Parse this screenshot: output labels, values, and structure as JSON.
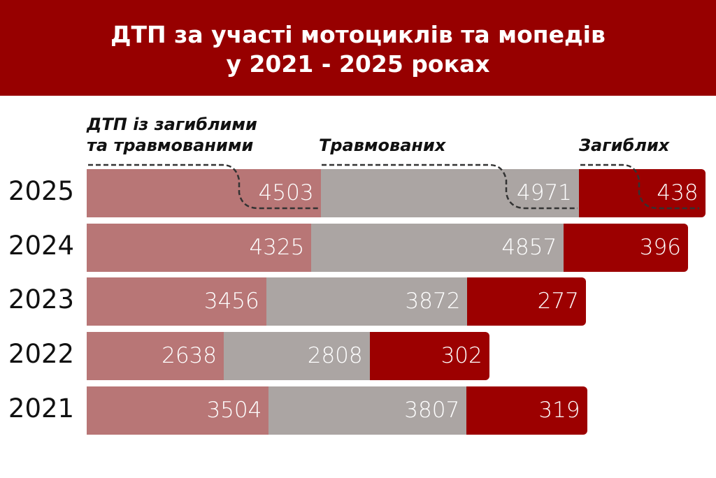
{
  "title_line1": "ДТП за участі мотоциклів та мопедів",
  "title_line2": "у 2021 - 2025 роках",
  "chart_data": {
    "type": "bar",
    "orientation": "horizontal",
    "stacked": true,
    "categories": [
      "2025",
      "2024",
      "2023",
      "2022",
      "2021"
    ],
    "series": [
      {
        "name": "ДТП із загиблими та травмованими",
        "label_lines": [
          "ДТП із загиблими",
          "та травмованими"
        ],
        "color": "#b87676",
        "values": [
          4503,
          4325,
          3456,
          2638,
          3504
        ]
      },
      {
        "name": "Травмованих",
        "color": "#aba5a3",
        "values": [
          4971,
          4857,
          3872,
          2808,
          3807
        ]
      },
      {
        "name": "Загиблих",
        "color": "#9c0000",
        "values": [
          438,
          396,
          277,
          302,
          319
        ]
      }
    ],
    "legend_placement": "top, above bars",
    "grid": false
  }
}
